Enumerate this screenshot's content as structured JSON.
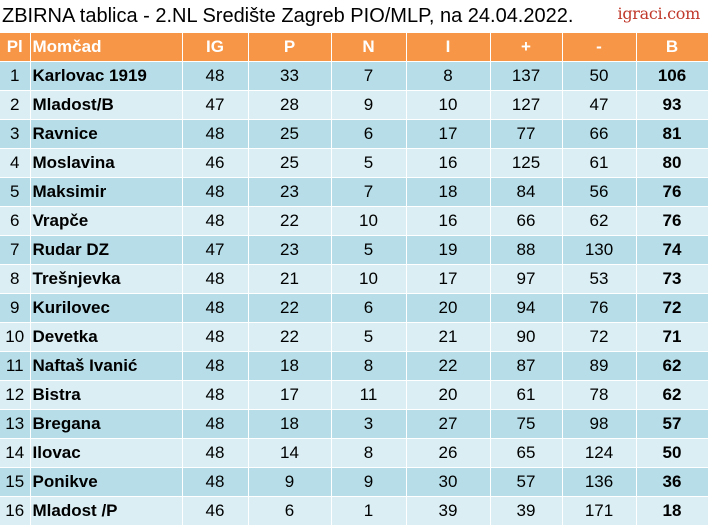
{
  "title": "ZBIRNA tablica - 2.NL Središte Zagreb PIO/MLP, na 24.04.2022.",
  "logo_text": "igraci.com",
  "headers": [
    "Pl",
    "Momčad",
    "IG",
    "P",
    "N",
    "I",
    "+",
    "-",
    "B"
  ],
  "rows": [
    [
      "1",
      "Karlovac 1919",
      "48",
      "33",
      "7",
      "8",
      "137",
      "50",
      "106"
    ],
    [
      "2",
      "Mladost/B",
      "47",
      "28",
      "9",
      "10",
      "127",
      "47",
      "93"
    ],
    [
      "3",
      "Ravnice",
      "48",
      "25",
      "6",
      "17",
      "77",
      "66",
      "81"
    ],
    [
      "4",
      "Moslavina",
      "46",
      "25",
      "5",
      "16",
      "125",
      "61",
      "80"
    ],
    [
      "5",
      "Maksimir",
      "48",
      "23",
      "7",
      "18",
      "84",
      "56",
      "76"
    ],
    [
      "6",
      "Vrapče",
      "48",
      "22",
      "10",
      "16",
      "66",
      "62",
      "76"
    ],
    [
      "7",
      "Rudar DZ",
      "47",
      "23",
      "5",
      "19",
      "88",
      "130",
      "74"
    ],
    [
      "8",
      "Trešnjevka",
      "48",
      "21",
      "10",
      "17",
      "97",
      "53",
      "73"
    ],
    [
      "9",
      "Kurilovec",
      "48",
      "22",
      "6",
      "20",
      "94",
      "76",
      "72"
    ],
    [
      "10",
      "Devetka",
      "48",
      "22",
      "5",
      "21",
      "90",
      "72",
      "71"
    ],
    [
      "11",
      "Naftaš Ivanić",
      "48",
      "18",
      "8",
      "22",
      "87",
      "89",
      "62"
    ],
    [
      "12",
      "Bistra",
      "48",
      "17",
      "11",
      "20",
      "61",
      "78",
      "62"
    ],
    [
      "13",
      "Bregana",
      "48",
      "18",
      "3",
      "27",
      "75",
      "98",
      "57"
    ],
    [
      "14",
      "Ilovac",
      "48",
      "14",
      "8",
      "26",
      "65",
      "124",
      "50"
    ],
    [
      "15",
      "Ponikve",
      "48",
      "9",
      "9",
      "30",
      "57",
      "136",
      "36"
    ],
    [
      "16",
      "Mladost /P",
      "46",
      "6",
      "1",
      "39",
      "39",
      "171",
      "18"
    ]
  ],
  "colors": {
    "header_bg": "#f79646",
    "row_odd": "#b7dee8",
    "row_even": "#daeef3",
    "logo": "#c0392b"
  }
}
